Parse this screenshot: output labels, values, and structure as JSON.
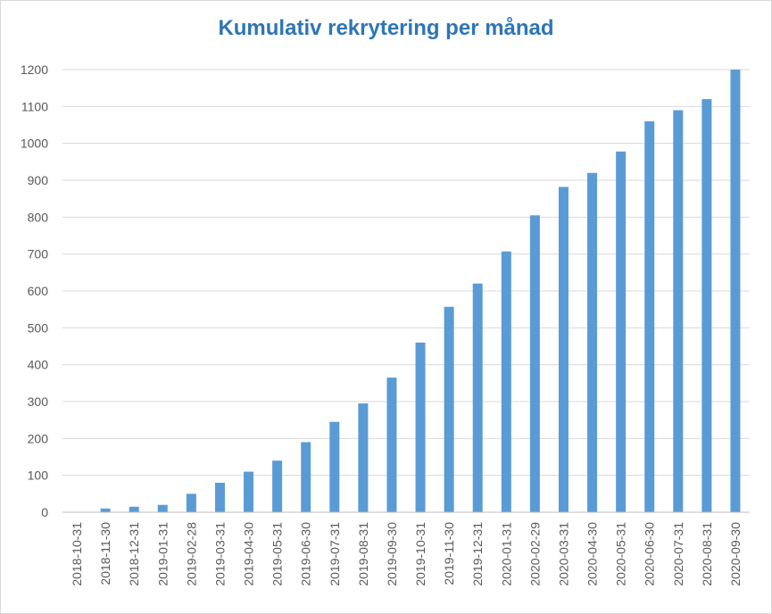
{
  "chart_data": {
    "type": "bar",
    "title": "Kumulativ rekrytering per månad",
    "xlabel": "",
    "ylabel": "",
    "ylim": [
      0,
      1200
    ],
    "yticks": [
      0,
      100,
      200,
      300,
      400,
      500,
      600,
      700,
      800,
      900,
      1000,
      1100,
      1200
    ],
    "grid": true,
    "legend": "none",
    "bar_color": "#5b9bd5",
    "categories": [
      "2018-10-31",
      "2018-11-30",
      "2018-12-31",
      "2019-01-31",
      "2019-02-28",
      "2019-03-31",
      "2019-04-30",
      "2019-05-31",
      "2019-06-30",
      "2019-07-31",
      "2019-08-31",
      "2019-09-30",
      "2019-10-31",
      "2019-11-30",
      "2019-12-31",
      "2020-01-31",
      "2020-02-29",
      "2020-03-31",
      "2020-04-30",
      "2020-05-31",
      "2020-06-30",
      "2020-07-31",
      "2020-08-31",
      "2020-09-30"
    ],
    "values": [
      0,
      10,
      15,
      20,
      50,
      80,
      110,
      140,
      190,
      245,
      295,
      365,
      460,
      557,
      620,
      707,
      805,
      882,
      920,
      978,
      1060,
      1090,
      1120,
      1200
    ]
  }
}
